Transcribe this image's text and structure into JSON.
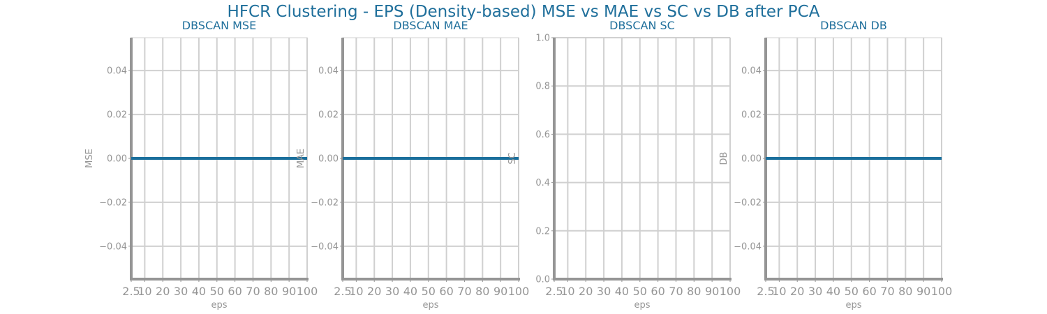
{
  "suptitle": "HFCR Clustering - EPS (Density-based) MSE vs MAE vs SC vs DB after PCA",
  "colors": {
    "title": "#1f6f9b",
    "line": "#1a6f9c",
    "axis": "#959595",
    "grid": "#d0d0d0",
    "text": "#959595"
  },
  "chart_data": [
    {
      "type": "line",
      "title": "DBSCAN MSE",
      "xlabel": "eps",
      "ylabel": "MSE",
      "xticks": [
        2.5,
        10,
        20,
        30,
        40,
        50,
        60,
        70,
        80,
        90,
        100
      ],
      "xtick_labels": [
        "2.5",
        "10",
        "20",
        "30",
        "40",
        "50",
        "60",
        "70",
        "80",
        "90",
        "100"
      ],
      "yticks": [
        -0.04,
        -0.02,
        0.0,
        0.02,
        0.04
      ],
      "ytick_labels": [
        "−0.04",
        "−0.02",
        "0.00",
        "0.02",
        "0.04"
      ],
      "xlim": [
        2.5,
        100
      ],
      "ylim": [
        -0.055,
        0.055
      ],
      "grid": true,
      "series": [
        {
          "x": [
            2.5,
            10,
            20,
            30,
            40,
            50,
            60,
            70,
            80,
            90,
            100
          ],
          "y": [
            0,
            0,
            0,
            0,
            0,
            0,
            0,
            0,
            0,
            0,
            0
          ]
        }
      ]
    },
    {
      "type": "line",
      "title": "DBSCAN MAE",
      "xlabel": "eps",
      "ylabel": "MAE",
      "xticks": [
        2.5,
        10,
        20,
        30,
        40,
        50,
        60,
        70,
        80,
        90,
        100
      ],
      "xtick_labels": [
        "2.5",
        "10",
        "20",
        "30",
        "40",
        "50",
        "60",
        "70",
        "80",
        "90",
        "100"
      ],
      "yticks": [
        -0.04,
        -0.02,
        0.0,
        0.02,
        0.04
      ],
      "ytick_labels": [
        "−0.04",
        "−0.02",
        "0.00",
        "0.02",
        "0.04"
      ],
      "xlim": [
        2.5,
        100
      ],
      "ylim": [
        -0.055,
        0.055
      ],
      "grid": true,
      "series": [
        {
          "x": [
            2.5,
            10,
            20,
            30,
            40,
            50,
            60,
            70,
            80,
            90,
            100
          ],
          "y": [
            0,
            0,
            0,
            0,
            0,
            0,
            0,
            0,
            0,
            0,
            0
          ]
        }
      ]
    },
    {
      "type": "line",
      "title": "DBSCAN SC",
      "xlabel": "eps",
      "ylabel": "SC",
      "xticks": [
        2.5,
        10,
        20,
        30,
        40,
        50,
        60,
        70,
        80,
        90,
        100
      ],
      "xtick_labels": [
        "2.5",
        "10",
        "20",
        "30",
        "40",
        "50",
        "60",
        "70",
        "80",
        "90",
        "100"
      ],
      "yticks": [
        0.0,
        0.2,
        0.4,
        0.6,
        0.8,
        1.0
      ],
      "ytick_labels": [
        "0.0",
        "0.2",
        "0.4",
        "0.6",
        "0.8",
        "1.0"
      ],
      "xlim": [
        2.5,
        100
      ],
      "ylim": [
        0,
        1
      ],
      "grid": true,
      "series": []
    },
    {
      "type": "line",
      "title": "DBSCAN DB",
      "xlabel": "eps",
      "ylabel": "DB",
      "xticks": [
        2.5,
        10,
        20,
        30,
        40,
        50,
        60,
        70,
        80,
        90,
        100
      ],
      "xtick_labels": [
        "2.5",
        "10",
        "20",
        "30",
        "40",
        "50",
        "60",
        "70",
        "80",
        "90",
        "100"
      ],
      "yticks": [
        -0.04,
        -0.02,
        0.0,
        0.02,
        0.04
      ],
      "ytick_labels": [
        "−0.04",
        "−0.02",
        "0.00",
        "0.02",
        "0.04"
      ],
      "xlim": [
        2.5,
        100
      ],
      "ylim": [
        -0.055,
        0.055
      ],
      "grid": true,
      "series": [
        {
          "x": [
            2.5,
            10,
            20,
            30,
            40,
            50,
            60,
            70,
            80,
            90,
            100
          ],
          "y": [
            0,
            0,
            0,
            0,
            0,
            0,
            0,
            0,
            0,
            0,
            0
          ]
        }
      ]
    }
  ]
}
